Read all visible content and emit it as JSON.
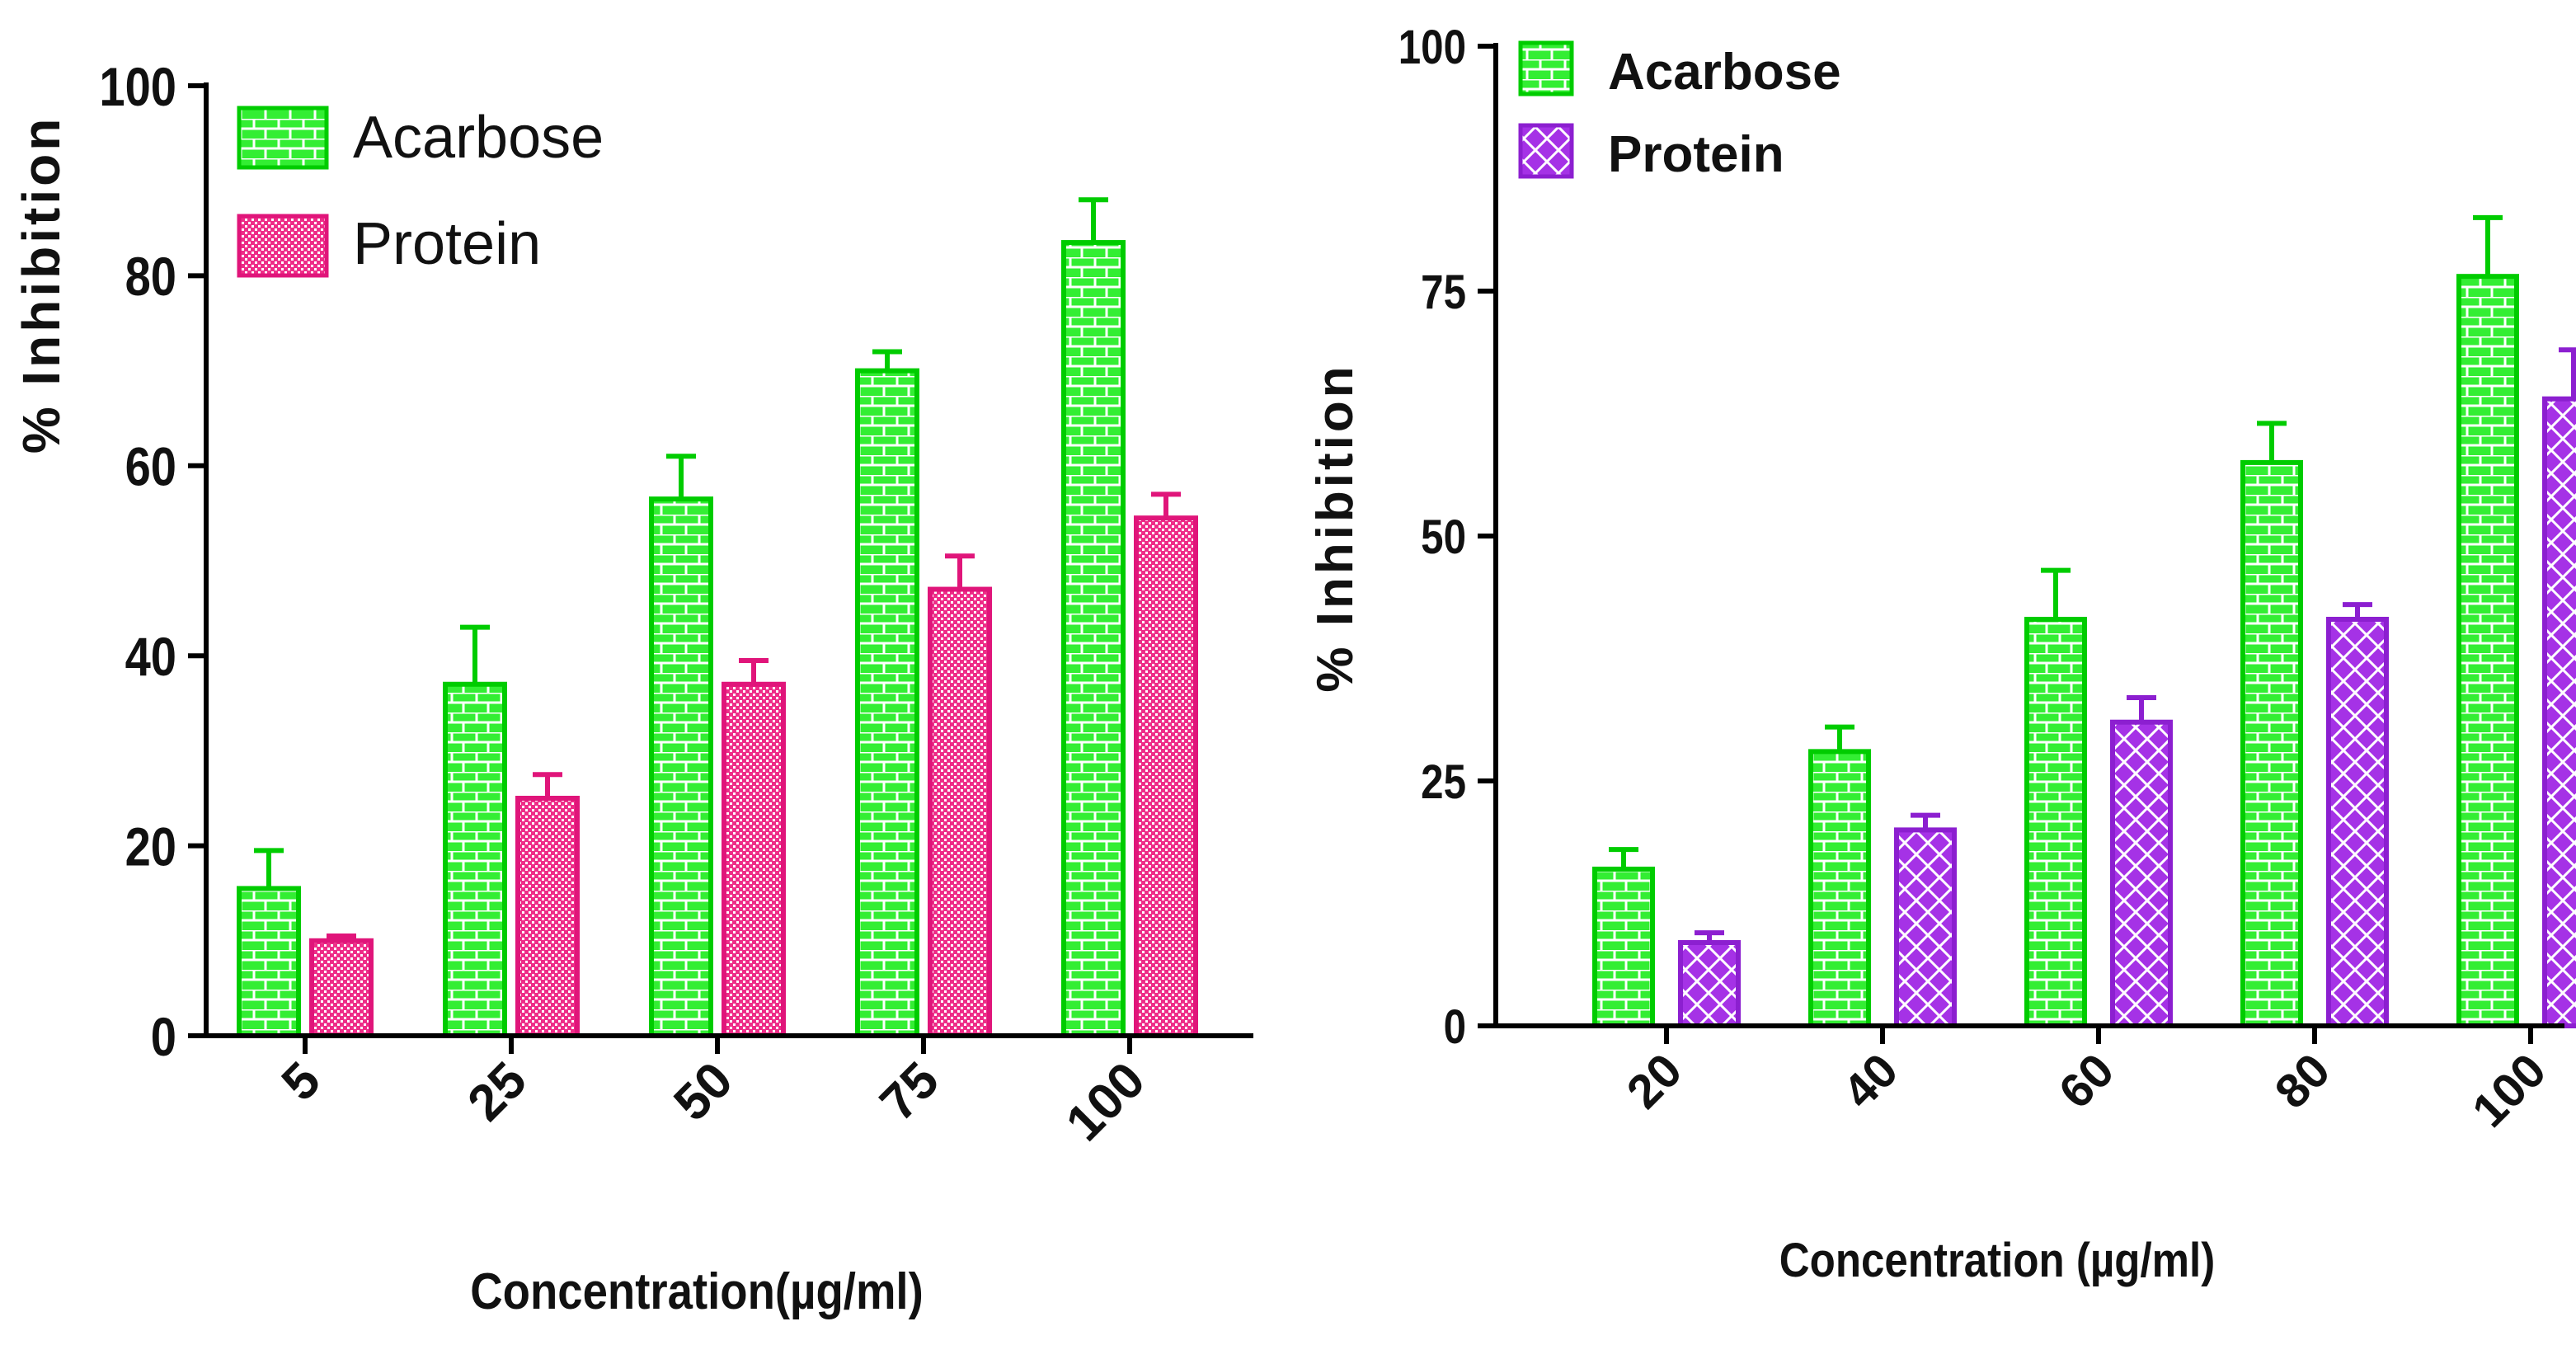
{
  "colors": {
    "acarbose_fill": "#33ee33",
    "acarbose_stroke": "#00cc00",
    "protein_left_fill": "#ee2d88",
    "protein_left_stroke": "#e0157a",
    "protein_right_fill": "#a532e6",
    "protein_right_stroke": "#8c1fd0",
    "pattern_line": "#ffffff",
    "axis": "#000000"
  },
  "chart_data": [
    {
      "type": "bar",
      "title": "",
      "xlabel": "Concentration(µg/ml)",
      "ylabel": "% Inhibition",
      "categories": [
        "5",
        "25",
        "50",
        "75",
        "100"
      ],
      "ylim": [
        0,
        100
      ],
      "yticks": [
        "0",
        "20",
        "40",
        "60",
        "80",
        "100"
      ],
      "grid": false,
      "legend_position": "top-left",
      "series": [
        {
          "name": "Acarbose",
          "values": [
            15.5,
            37,
            56.5,
            70,
            83.5
          ],
          "errors": [
            4,
            6,
            4.5,
            2,
            4.5
          ],
          "pattern": "brick"
        },
        {
          "name": "Protein",
          "values": [
            10,
            25,
            37,
            47,
            54.5
          ],
          "errors": [
            0.5,
            2.5,
            2.5,
            3.5,
            2.5
          ],
          "pattern": "dots"
        }
      ]
    },
    {
      "type": "bar",
      "title": "",
      "xlabel": "Concentration (µg/ml)",
      "ylabel": "% Inhibition",
      "categories": [
        "20",
        "40",
        "60",
        "80",
        "100"
      ],
      "ylim": [
        0,
        100
      ],
      "yticks": [
        "0",
        "25",
        "50",
        "75",
        "100"
      ],
      "grid": false,
      "legend_position": "top-left",
      "series": [
        {
          "name": "Acarbose",
          "values": [
            16,
            28,
            41.5,
            57.5,
            76.5
          ],
          "errors": [
            2,
            2.5,
            5,
            4,
            6
          ],
          "pattern": "brick"
        },
        {
          "name": "Protein",
          "values": [
            8.5,
            20,
            31,
            41.5,
            64
          ],
          "errors": [
            1,
            1.5,
            2.5,
            1.5,
            5
          ],
          "pattern": "crosshatch"
        }
      ]
    }
  ]
}
